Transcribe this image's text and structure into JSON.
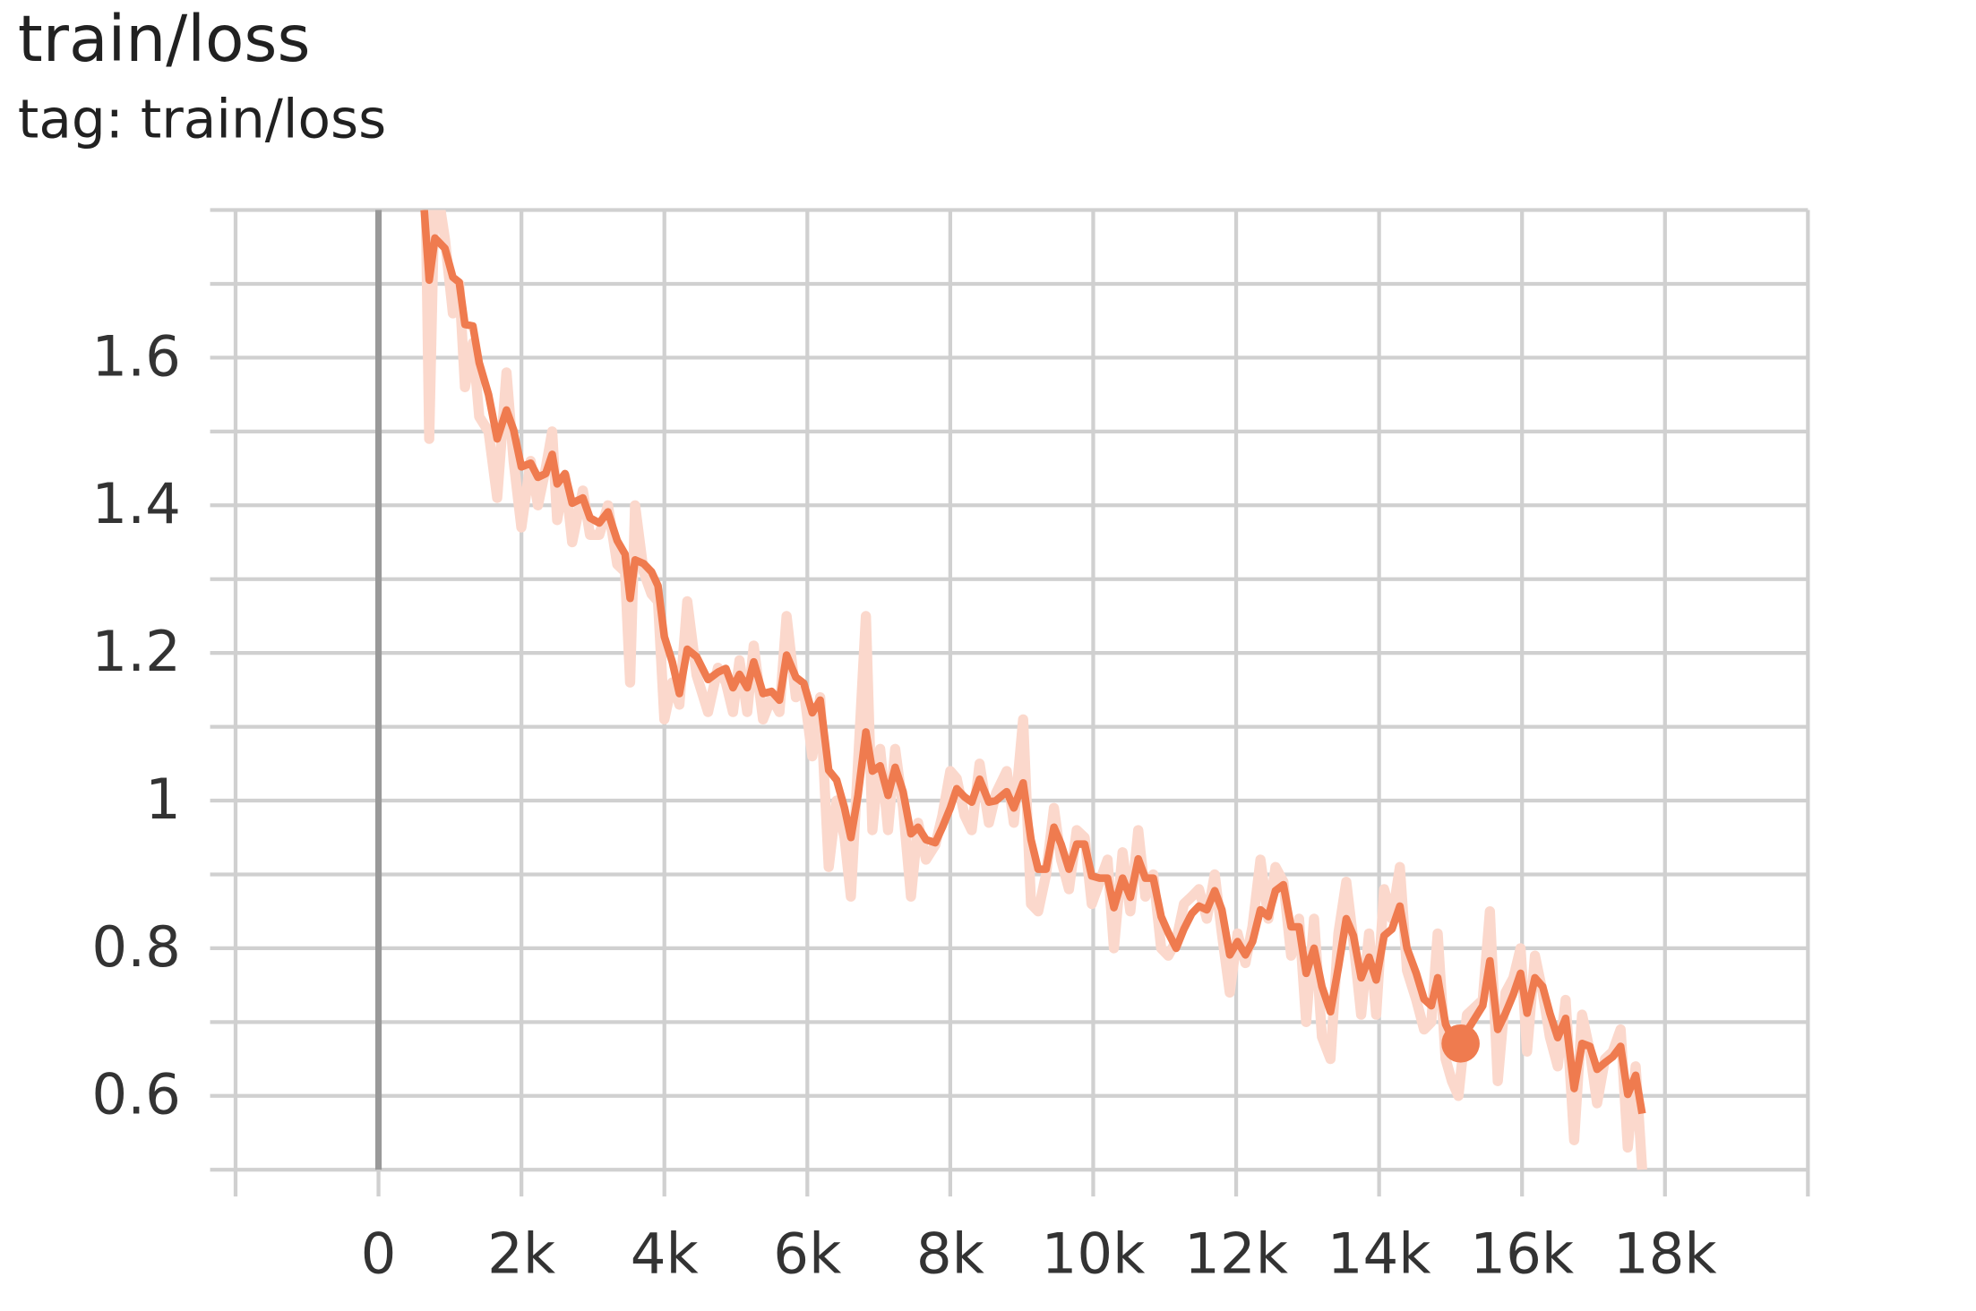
{
  "chart_data": {
    "type": "line",
    "title": "train/loss",
    "subtitle": "tag: train/loss",
    "x": [
      640,
      710,
      790,
      930,
      1040,
      1130,
      1210,
      1320,
      1410,
      1540,
      1660,
      1790,
      1890,
      2000,
      2130,
      2230,
      2340,
      2430,
      2500,
      2610,
      2710,
      2860,
      2960,
      3090,
      3210,
      3340,
      3450,
      3520,
      3590,
      3710,
      3820,
      3910,
      4000,
      4110,
      4210,
      4320,
      4450,
      4610,
      4750,
      4860,
      4960,
      5050,
      5160,
      5250,
      5380,
      5500,
      5610,
      5710,
      5840,
      5950,
      6070,
      6180,
      6300,
      6410,
      6520,
      6610,
      6710,
      6820,
      6910,
      7020,
      7130,
      7230,
      7340,
      7450,
      7550,
      7660,
      7790,
      7890,
      8000,
      8090,
      8200,
      8300,
      8410,
      8540,
      8640,
      8790,
      8890,
      9020,
      9130,
      9230,
      9340,
      9450,
      9550,
      9660,
      9770,
      9880,
      9980,
      10090,
      10200,
      10290,
      10410,
      10520,
      10630,
      10730,
      10840,
      10950,
      11050,
      11160,
      11270,
      11380,
      11480,
      11590,
      11700,
      11800,
      11910,
      12020,
      12130,
      12230,
      12340,
      12450,
      12550,
      12660,
      12770,
      12880,
      12980,
      13090,
      13200,
      13320,
      13430,
      13540,
      13640,
      13750,
      13860,
      13960,
      14070,
      14180,
      14290,
      14390,
      14520,
      14630,
      14730,
      14820,
      14930,
      15020,
      15110,
      15230,
      15340,
      15450,
      15550,
      15660,
      15770,
      15880,
      15980,
      16070,
      16180,
      16290,
      16390,
      16500,
      16610,
      16730,
      16840,
      16950,
      17050,
      17160,
      17270,
      17380,
      17480,
      17590,
      17680
    ],
    "series": [
      {
        "color": "#fbd8cc",
        "width": 8,
        "values": [
          1.95,
          1.49,
          1.85,
          1.76,
          1.66,
          1.7,
          1.56,
          1.62,
          1.52,
          1.5,
          1.41,
          1.58,
          1.46,
          1.37,
          1.46,
          1.4,
          1.45,
          1.5,
          1.38,
          1.44,
          1.35,
          1.42,
          1.36,
          1.36,
          1.4,
          1.32,
          1.31,
          1.16,
          1.4,
          1.31,
          1.28,
          1.27,
          1.11,
          1.16,
          1.13,
          1.27,
          1.17,
          1.12,
          1.18,
          1.16,
          1.12,
          1.19,
          1.12,
          1.21,
          1.11,
          1.14,
          1.12,
          1.25,
          1.14,
          1.15,
          1.06,
          1.14,
          0.91,
          1.0,
          0.95,
          0.87,
          1.05,
          1.25,
          0.96,
          1.07,
          0.96,
          1.07,
          0.99,
          0.87,
          0.97,
          0.92,
          0.94,
          0.98,
          1.04,
          1.03,
          0.98,
          0.96,
          1.05,
          0.97,
          1.01,
          1.04,
          0.97,
          1.11,
          0.86,
          0.85,
          0.9,
          0.99,
          0.92,
          0.88,
          0.96,
          0.95,
          0.86,
          0.89,
          0.92,
          0.8,
          0.93,
          0.85,
          0.96,
          0.87,
          0.9,
          0.8,
          0.79,
          0.81,
          0.86,
          0.87,
          0.88,
          0.84,
          0.9,
          0.82,
          0.74,
          0.82,
          0.78,
          0.83,
          0.92,
          0.84,
          0.91,
          0.89,
          0.79,
          0.84,
          0.7,
          0.84,
          0.68,
          0.65,
          0.82,
          0.89,
          0.81,
          0.71,
          0.82,
          0.71,
          0.88,
          0.84,
          0.91,
          0.77,
          0.73,
          0.69,
          0.7,
          0.82,
          0.65,
          0.62,
          0.6,
          0.71,
          0.72,
          0.73,
          0.85,
          0.62,
          0.74,
          0.76,
          0.8,
          0.66,
          0.79,
          0.74,
          0.68,
          0.64,
          0.73,
          0.54,
          0.71,
          0.66,
          0.59,
          0.65,
          0.66,
          0.69,
          0.53,
          0.64,
          0.5
        ]
      },
      {
        "color": "#ef7b4f",
        "width": 6,
        "values": [
          1.8,
          1.705,
          1.762,
          1.748,
          1.709,
          1.702,
          1.645,
          1.643,
          1.593,
          1.55,
          1.49,
          1.529,
          1.502,
          1.452,
          1.457,
          1.438,
          1.443,
          1.469,
          1.429,
          1.443,
          1.403,
          1.41,
          1.383,
          1.376,
          1.391,
          1.352,
          1.334,
          1.274,
          1.326,
          1.321,
          1.31,
          1.291,
          1.222,
          1.188,
          1.145,
          1.205,
          1.195,
          1.164,
          1.174,
          1.179,
          1.153,
          1.171,
          1.153,
          1.188,
          1.145,
          1.148,
          1.136,
          1.197,
          1.167,
          1.159,
          1.119,
          1.136,
          1.041,
          1.028,
          0.99,
          0.95,
          1.007,
          1.093,
          1.04,
          1.047,
          1.007,
          1.045,
          1.012,
          0.955,
          0.964,
          0.947,
          0.943,
          0.964,
          0.99,
          1.016,
          1.005,
          0.998,
          1.029,
          0.998,
          1.0,
          1.012,
          0.99,
          1.024,
          0.947,
          0.907,
          0.907,
          0.964,
          0.941,
          0.907,
          0.941,
          0.941,
          0.898,
          0.895,
          0.895,
          0.855,
          0.895,
          0.869,
          0.921,
          0.895,
          0.895,
          0.843,
          0.821,
          0.8,
          0.826,
          0.847,
          0.857,
          0.852,
          0.878,
          0.852,
          0.791,
          0.809,
          0.791,
          0.809,
          0.852,
          0.843,
          0.878,
          0.886,
          0.829,
          0.829,
          0.766,
          0.8,
          0.748,
          0.714,
          0.774,
          0.84,
          0.817,
          0.76,
          0.788,
          0.757,
          0.817,
          0.826,
          0.857,
          0.8,
          0.766,
          0.731,
          0.722,
          0.76,
          0.697,
          0.679,
          0.662,
          0.688,
          0.705,
          0.722,
          0.783,
          0.69,
          0.712,
          0.738,
          0.766,
          0.712,
          0.76,
          0.748,
          0.712,
          0.679,
          0.705,
          0.61,
          0.671,
          0.667,
          0.636,
          0.645,
          0.653,
          0.667,
          0.602,
          0.628,
          0.576
        ]
      }
    ],
    "highlight_point": {
      "x": 15140,
      "y": 0.671,
      "color": "#ef7b4f"
    },
    "xlim": [
      -2000,
      20000
    ],
    "xticks": [
      0,
      {
        "value": 2000,
        "label": "2k"
      },
      {
        "value": 4000,
        "label": "4k"
      },
      {
        "value": 6000,
        "label": "6k"
      },
      {
        "value": 8000,
        "label": "8k"
      },
      {
        "value": 10000,
        "label": "10k"
      },
      {
        "value": 12000,
        "label": "12k"
      },
      {
        "value": 14000,
        "label": "14k"
      },
      {
        "value": 16000,
        "label": "16k"
      },
      {
        "value": 18000,
        "label": "18k"
      }
    ],
    "ylim": [
      0.5,
      1.8
    ],
    "yticks": [
      0.6,
      0.8,
      1,
      1.2,
      1.4,
      1.6
    ],
    "yminor": [
      0.7,
      0.9,
      1.1,
      1.3,
      1.5,
      1.7
    ],
    "grid": true,
    "zero_line": true
  }
}
